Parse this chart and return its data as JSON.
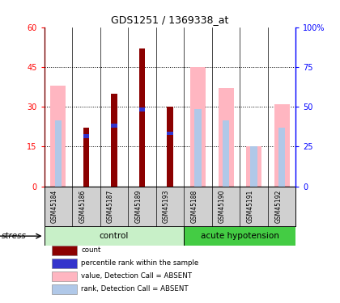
{
  "title": "GDS1251 / 1369338_at",
  "samples": [
    "GSM45184",
    "GSM45186",
    "GSM45187",
    "GSM45189",
    "GSM45193",
    "GSM45188",
    "GSM45190",
    "GSM45191",
    "GSM45192"
  ],
  "pink_bars": [
    38,
    0,
    0,
    0,
    0,
    45,
    37,
    15,
    31
  ],
  "red_bars": [
    0,
    22,
    35,
    52,
    30,
    0,
    0,
    0,
    0
  ],
  "blue_segs": [
    0,
    19,
    23,
    29,
    20,
    0,
    0,
    0,
    0
  ],
  "blue_seg_heights": [
    1.5,
    1.5,
    1.5,
    1.5,
    1.5,
    0,
    0,
    0,
    0
  ],
  "light_blue_bars": [
    25,
    0,
    0,
    0,
    0,
    29,
    25,
    15,
    22
  ],
  "ylim_left": [
    0,
    60
  ],
  "ylim_right": [
    0,
    100
  ],
  "yticks_left": [
    0,
    15,
    30,
    45,
    60
  ],
  "yticks_right": [
    0,
    25,
    50,
    75,
    100
  ],
  "ytick_right_labels": [
    "0",
    "25",
    "50",
    "75",
    "100%"
  ],
  "ctrl_n": 5,
  "hypo_n": 4,
  "ctrl_color": "#c8f0c8",
  "hypo_color": "#44cc44",
  "pink_color": "#FFB6C1",
  "red_color": "#8B0000",
  "blue_color": "#3333CC",
  "light_blue_color": "#B0C8E8",
  "label_bg": "#d0d0d0",
  "bg_color": "#ffffff",
  "legend_items": [
    {
      "label": "count",
      "color": "#8B0000"
    },
    {
      "label": "percentile rank within the sample",
      "color": "#3333CC"
    },
    {
      "label": "value, Detection Call = ABSENT",
      "color": "#FFB6C1"
    },
    {
      "label": "rank, Detection Call = ABSENT",
      "color": "#B0C8E8"
    }
  ]
}
